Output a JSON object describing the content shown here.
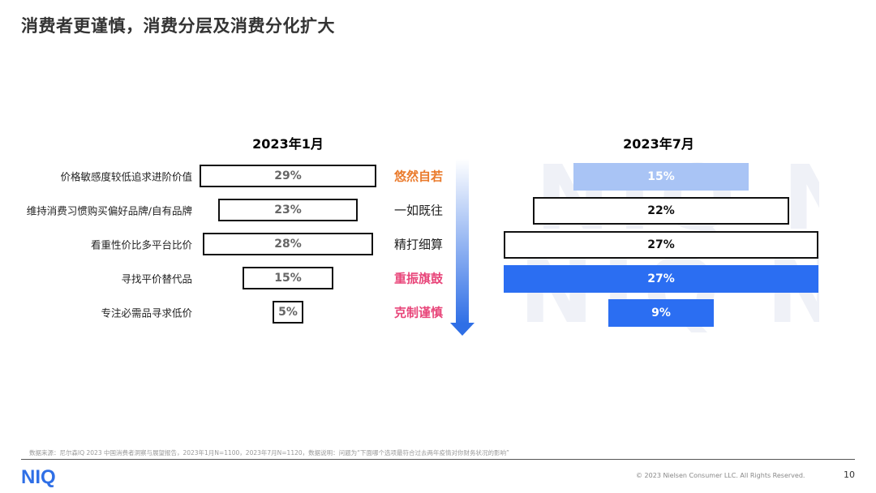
{
  "title": "消费者更谨慎，消费分层及消费分化扩大",
  "colors": {
    "outline": "#111111",
    "left_value_text": "#666666",
    "stage_orange": "#ea7a2b",
    "stage_pink": "#e8467a",
    "bar_blue": "#2b6ef2",
    "bar_light_blue": "#a9c4f5",
    "arrow_blue": "#2f6fe6"
  },
  "chart_data": {
    "type": "bar",
    "categories": [
      "价格敏感度较低追求进阶价值",
      "维持消费习惯购买偏好品牌/自有品牌",
      "看重性价比多平台比价",
      "寻找平价替代品",
      "专注必需品寻求低价"
    ],
    "stages": [
      {
        "label": "悠然自若",
        "color": "#ea7a2b"
      },
      {
        "label": "一如既往",
        "color": "#222222"
      },
      {
        "label": "精打细算",
        "color": "#222222"
      },
      {
        "label": "重振旗鼓",
        "color": "#e8467a"
      },
      {
        "label": "克制谨慎",
        "color": "#e8467a"
      }
    ],
    "series": [
      {
        "name": "2023年1月",
        "values": [
          29,
          23,
          28,
          15,
          5
        ],
        "labels": [
          "29%",
          "23%",
          "28%",
          "15%",
          "5%"
        ],
        "style": "outline"
      },
      {
        "name": "2023年7月",
        "values": [
          15,
          22,
          27,
          27,
          9
        ],
        "labels": [
          "15%",
          "22%",
          "27%",
          "27%",
          "9%"
        ],
        "styles": [
          "light",
          "outline",
          "outline",
          "fill",
          "fill"
        ]
      }
    ]
  },
  "footer": {
    "footnote": "数据来源：尼尔森IQ 2023 中国消费者洞察与展望报告，2023年1月N=1100，2023年7月N=1120，数据说明：问题为“下面哪个选项最符合过去两年疫情对你财务状况的影响”",
    "logo_text": "NIQ",
    "watermark_text": "NIQ NIQ",
    "copyright": "© 2023 Nielsen Consumer LLC. All Rights Reserved.",
    "page_number": "10"
  }
}
